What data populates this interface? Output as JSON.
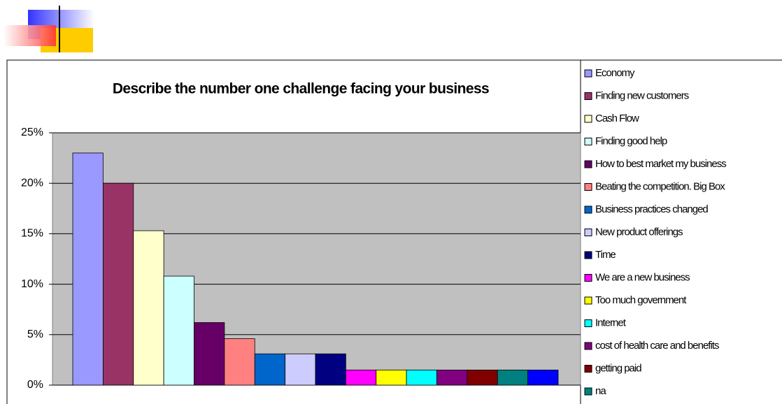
{
  "chart_data": {
    "type": "bar",
    "title": "Describe the number one challenge facing your business",
    "ylim": [
      0,
      25
    ],
    "yticks": [
      {
        "value": 0,
        "label": "0%"
      },
      {
        "value": 5,
        "label": "5%"
      },
      {
        "value": 10,
        "label": "10%"
      },
      {
        "value": 15,
        "label": "15%"
      },
      {
        "value": 20,
        "label": "20%"
      },
      {
        "value": 25,
        "label": "25%"
      }
    ],
    "grid": true,
    "legend": "right",
    "series": [
      {
        "name": "Economy",
        "color": "#9999ff",
        "values": [
          23
        ]
      },
      {
        "name": "Finding new customers",
        "color": "#993366",
        "values": [
          20
        ]
      },
      {
        "name": "Cash Flow",
        "color": "#ffffcc",
        "values": [
          15.3
        ]
      },
      {
        "name": "Finding good help",
        "color": "#ccffff",
        "values": [
          10.8
        ]
      },
      {
        "name": "How to best market my business",
        "color": "#660066",
        "values": [
          6.2
        ]
      },
      {
        "name": "Beating the competition. Big Box",
        "color": "#ff8080",
        "values": [
          4.6
        ]
      },
      {
        "name": "Business practices changed",
        "color": "#0066cc",
        "values": [
          3.1
        ]
      },
      {
        "name": "New product offerings",
        "color": "#ccccff",
        "values": [
          3.1
        ]
      },
      {
        "name": "Time",
        "color": "#000080",
        "values": [
          3.1
        ]
      },
      {
        "name": "We are a new business",
        "color": "#ff00ff",
        "values": [
          1.5
        ]
      },
      {
        "name": "Too much government",
        "color": "#ffff00",
        "values": [
          1.5
        ]
      },
      {
        "name": "Internet",
        "color": "#00ffff",
        "values": [
          1.5
        ]
      },
      {
        "name": "cost of health care and benefits",
        "color": "#800080",
        "values": [
          1.5
        ]
      },
      {
        "name": "getting paid",
        "color": "#800000",
        "values": [
          1.5
        ]
      },
      {
        "name": "na",
        "color": "#008080",
        "values": [
          1.5
        ]
      },
      {
        "name": null,
        "color": "#0000ff",
        "values": [
          1.5
        ]
      }
    ]
  }
}
